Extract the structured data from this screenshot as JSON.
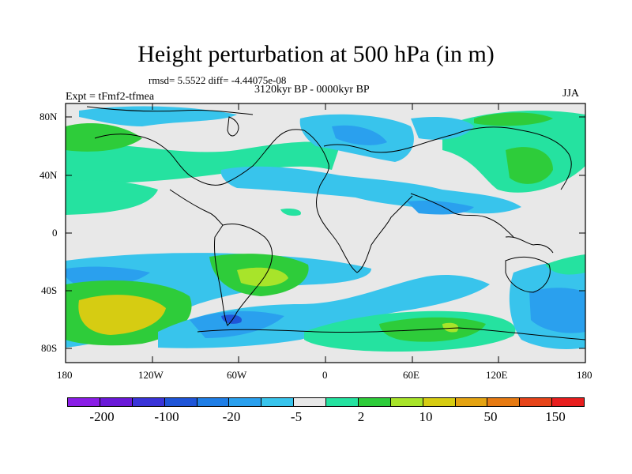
{
  "title": "Height perturbation at 500 hPa (in m)",
  "stats_line": "rmsd= 5.5522 diff= -4.44075e-08",
  "period": "3120kyr BP - 0000kyr BP",
  "experiment": "Expt = tFmf2-tfmea",
  "season": "JJA",
  "lat_ticks": [
    "80N",
    "40N",
    "0",
    "40S",
    "80S"
  ],
  "lon_ticks": [
    "180",
    "120W",
    "60W",
    "0",
    "60E",
    "120E",
    "180"
  ],
  "colorbar": {
    "colors": [
      "#8a1ee6",
      "#6a1ad8",
      "#3a34d8",
      "#1f55d8",
      "#1f7ee6",
      "#2aa0ee",
      "#38c4ec",
      "#e8e8e8",
      "#25e2a0",
      "#2ecc3a",
      "#a8e42a",
      "#d6cc12",
      "#e4a312",
      "#e67a12",
      "#e6441a",
      "#e81e1e"
    ],
    "labels": [
      "-200",
      "-100",
      "-20",
      "-5",
      "2",
      "10",
      "50",
      "150"
    ]
  },
  "map_colors": {
    "background": "#e8e8e8",
    "neg_light": "#38c4ec",
    "neg_mid": "#2aa0ee",
    "neg_strong": "#1f7ee6",
    "neg_deep": "#1f55d8",
    "pos_light": "#25e2a0",
    "pos_mid": "#2ecc3a",
    "pos_strong": "#a8e42a",
    "pos_deep": "#d6cc12"
  }
}
